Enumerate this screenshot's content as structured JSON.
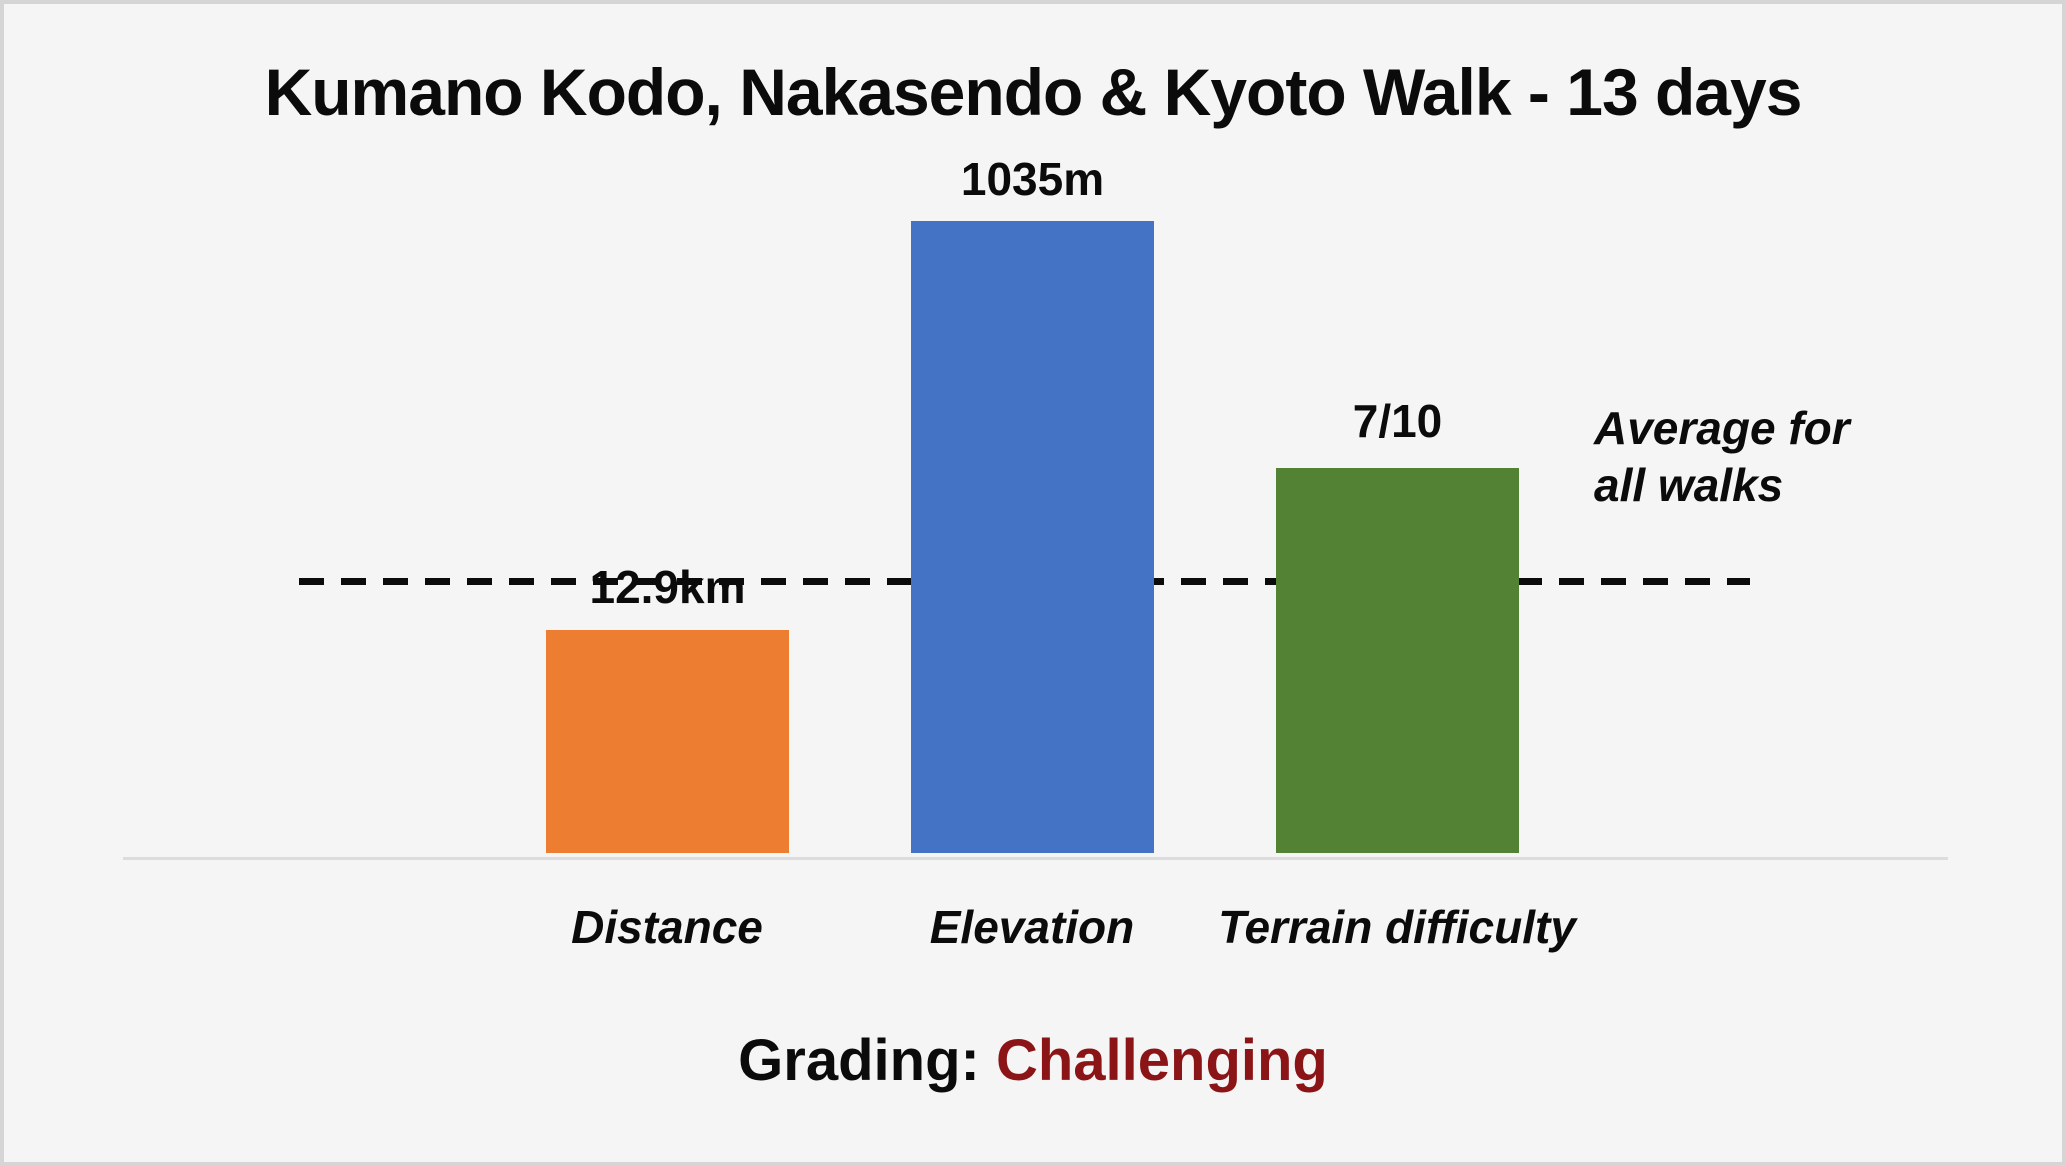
{
  "chart": {
    "title": "Kumano Kodo, Nakasendo & Kyoto Walk - 13 days",
    "grading_label": "Grading:",
    "grading_value": "Challenging",
    "grading_value_color": "#8B1417",
    "background_color": "#F5F5F5",
    "border_color": "#D5D5D5",
    "baseline_color": "#DCDCDC"
  },
  "chart_data": {
    "type": "bar",
    "title": "Kumano Kodo, Nakasendo & Kyoto Walk - 13 days",
    "categories": [
      "Distance",
      "Elevation",
      "Terrain difficulty"
    ],
    "values": [
      12.9,
      1035,
      7
    ],
    "value_labels": [
      "12.9km",
      "1035m",
      "7/10"
    ],
    "units": [
      "km",
      "m",
      "out of 10"
    ],
    "bar_colors": [
      "#ED7D31",
      "#4472C4",
      "#548235"
    ],
    "reference_line": {
      "label": "Average for all walks",
      "label_line1": "Average for",
      "label_line2": "all walks",
      "style": "dashed",
      "color": "#0B0B0B",
      "meaning": "average for all walks; bars drawn relative to this level",
      "relative_bar_heights_vs_average": [
        0.81,
        2.28,
        1.39
      ]
    },
    "footer": {
      "label": "Grading:",
      "value": "Challenging",
      "value_color": "#8B1417"
    },
    "legend": false,
    "axes": {
      "y_axis_visible": false,
      "x_axis_tick_labels_visible": true
    },
    "grid": false
  }
}
